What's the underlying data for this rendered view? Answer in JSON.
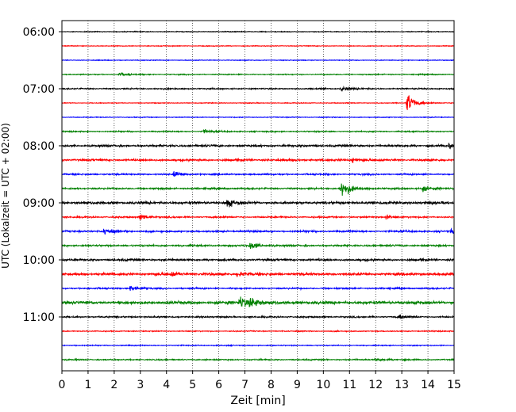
{
  "chart_data": {
    "type": "line",
    "title": "",
    "xlabel": "Zeit  [min]",
    "ylabel": "UTC (Lokalzeit = UTC + 02:00)",
    "xlim": [
      0,
      15
    ],
    "x_ticks": [
      "0",
      "1",
      "2",
      "3",
      "4",
      "5",
      "6",
      "7",
      "8",
      "9",
      "10",
      "11",
      "12",
      "13",
      "14",
      "15"
    ],
    "y_tick_labels": [
      "06:00",
      "07:00",
      "08:00",
      "09:00",
      "10:00",
      "11:00"
    ],
    "trace_interval_minutes": 15,
    "grid": "vertical dotted",
    "colors": [
      "#000000",
      "#ff0000",
      "#0000ff",
      "#008000"
    ],
    "series": [
      {
        "start": "06:00",
        "color": "#000000",
        "amplitude": 0.3,
        "events": []
      },
      {
        "start": "06:15",
        "color": "#ff0000",
        "amplitude": 0.3,
        "events": []
      },
      {
        "start": "06:30",
        "color": "#0000ff",
        "amplitude": 0.3,
        "events": []
      },
      {
        "start": "06:45",
        "color": "#008000",
        "amplitude": 0.4,
        "events": [
          {
            "t": 2.2,
            "amp": 1.5
          }
        ]
      },
      {
        "start": "07:00",
        "color": "#000000",
        "amplitude": 0.5,
        "events": [
          {
            "t": 10.7,
            "amp": 2.5
          }
        ]
      },
      {
        "start": "07:15",
        "color": "#ff0000",
        "amplitude": 0.3,
        "events": [
          {
            "t": 13.2,
            "amp": 10
          }
        ]
      },
      {
        "start": "07:30",
        "color": "#0000ff",
        "amplitude": 0.3,
        "events": []
      },
      {
        "start": "07:45",
        "color": "#008000",
        "amplitude": 0.5,
        "events": [
          {
            "t": 5.4,
            "amp": 2
          }
        ]
      },
      {
        "start": "08:00",
        "color": "#000000",
        "amplitude": 0.8,
        "events": [
          {
            "t": 14.8,
            "amp": 2.5
          }
        ]
      },
      {
        "start": "08:15",
        "color": "#ff0000",
        "amplitude": 0.8,
        "events": [
          {
            "t": 11.1,
            "amp": 2
          }
        ]
      },
      {
        "start": "08:30",
        "color": "#0000ff",
        "amplitude": 0.6,
        "events": [
          {
            "t": 4.3,
            "amp": 3
          }
        ]
      },
      {
        "start": "08:45",
        "color": "#008000",
        "amplitude": 0.7,
        "events": [
          {
            "t": 10.7,
            "amp": 9
          },
          {
            "t": 13.8,
            "amp": 2.5
          }
        ]
      },
      {
        "start": "09:00",
        "color": "#000000",
        "amplitude": 1.0,
        "events": [
          {
            "t": 6.3,
            "amp": 4
          }
        ]
      },
      {
        "start": "09:15",
        "color": "#ff0000",
        "amplitude": 0.6,
        "events": [
          {
            "t": 3.0,
            "amp": 3
          },
          {
            "t": 12.4,
            "amp": 2
          }
        ]
      },
      {
        "start": "09:30",
        "color": "#0000ff",
        "amplitude": 0.7,
        "events": [
          {
            "t": 1.6,
            "amp": 3
          },
          {
            "t": 14.9,
            "amp": 2
          }
        ]
      },
      {
        "start": "09:45",
        "color": "#008000",
        "amplitude": 0.7,
        "events": [
          {
            "t": 7.2,
            "amp": 4
          }
        ]
      },
      {
        "start": "10:00",
        "color": "#000000",
        "amplitude": 0.8,
        "events": []
      },
      {
        "start": "10:15",
        "color": "#ff0000",
        "amplitude": 1.0,
        "events": [
          {
            "t": 4.2,
            "amp": 2
          },
          {
            "t": 6.7,
            "amp": 2
          }
        ]
      },
      {
        "start": "10:30",
        "color": "#0000ff",
        "amplitude": 0.6,
        "events": [
          {
            "t": 2.6,
            "amp": 2.5
          }
        ]
      },
      {
        "start": "10:45",
        "color": "#008000",
        "amplitude": 1.2,
        "events": [
          {
            "t": 6.8,
            "amp": 6
          },
          {
            "t": 7.2,
            "amp": 5
          }
        ]
      },
      {
        "start": "11:00",
        "color": "#000000",
        "amplitude": 0.6,
        "events": [
          {
            "t": 12.9,
            "amp": 2
          }
        ]
      },
      {
        "start": "11:15",
        "color": "#ff0000",
        "amplitude": 0.4,
        "events": []
      },
      {
        "start": "11:30",
        "color": "#0000ff",
        "amplitude": 0.4,
        "events": []
      },
      {
        "start": "11:45",
        "color": "#008000",
        "amplitude": 0.5,
        "events": [
          {
            "t": 12.0,
            "amp": 2
          }
        ]
      }
    ]
  }
}
